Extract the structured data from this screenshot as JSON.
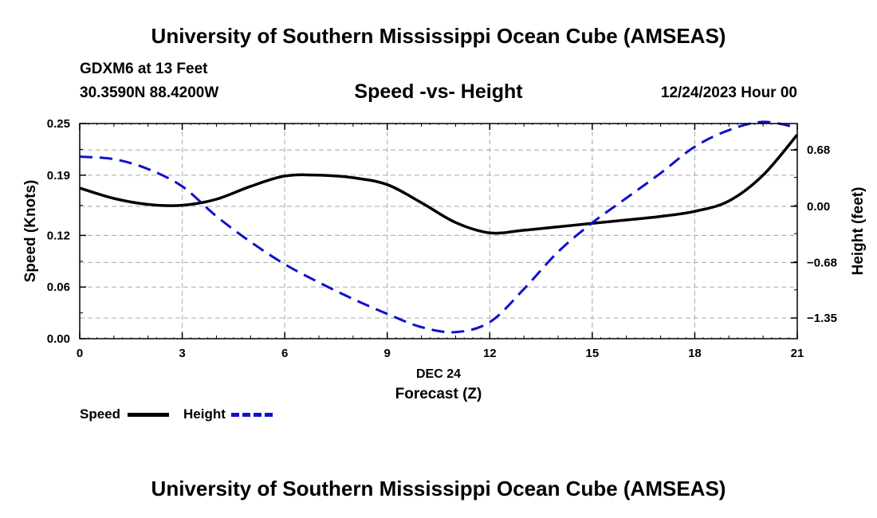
{
  "header": {
    "title": "University of Southern Mississippi Ocean Cube (AMSEAS)",
    "station": "GDXM6 at 13 Feet",
    "coords": "30.3590N  88.4200W",
    "subtitle": "Speed -vs- Height",
    "datetime": "12/24/2023 Hour 00"
  },
  "footer": {
    "title": "University of Southern Mississippi Ocean Cube (AMSEAS)"
  },
  "legend": {
    "speed_label": "Speed",
    "height_label": "Height"
  },
  "colors": {
    "speed": "#000000",
    "height": "#1010cc",
    "grid": "#b4b4b4"
  },
  "chart_data": {
    "type": "line",
    "title": "Speed -vs- Height",
    "xlabel": "Forecast (Z)",
    "xlabel_date": "DEC 24",
    "ylabel": "Speed (Knots)",
    "y2label": "Height (feet)",
    "xlim": [
      0,
      21
    ],
    "ylim": [
      0,
      0.25
    ],
    "y2lim": [
      -1.6,
      1.0
    ],
    "xticks": [
      0,
      3,
      6,
      9,
      12,
      15,
      18,
      21
    ],
    "xtick_labels": [
      "0",
      "3",
      "6",
      "9",
      "12",
      "15",
      "18",
      "21"
    ],
    "yticks": [
      0,
      0.06,
      0.12,
      0.19,
      0.25
    ],
    "ytick_labels": [
      "0.00",
      "0.06",
      "0.12",
      "0.19",
      "0.25"
    ],
    "y2ticks": [
      -1.35,
      -0.68,
      0.0,
      0.68
    ],
    "y2tick_labels": [
      "−1.35",
      "−0.68",
      "0.00",
      "0.68"
    ],
    "grid": true,
    "series": [
      {
        "name": "Speed",
        "axis": "left",
        "style": "solid",
        "x": [
          0,
          1,
          2,
          3,
          4,
          5,
          6,
          7,
          8,
          9,
          10,
          11,
          12,
          13,
          14,
          15,
          16,
          17,
          18,
          19,
          20,
          21
        ],
        "values": [
          0.175,
          0.163,
          0.156,
          0.155,
          0.162,
          0.177,
          0.189,
          0.19,
          0.187,
          0.179,
          0.158,
          0.135,
          0.123,
          0.126,
          0.13,
          0.134,
          0.138,
          0.142,
          0.148,
          0.16,
          0.19,
          0.237
        ]
      },
      {
        "name": "Height",
        "axis": "right",
        "style": "dashed",
        "x": [
          0,
          1,
          2,
          3,
          4,
          5,
          6,
          7,
          8,
          9,
          10,
          11,
          12,
          13,
          14,
          15,
          16,
          17,
          18,
          19,
          20,
          21
        ],
        "values": [
          0.6,
          0.57,
          0.45,
          0.24,
          -0.12,
          -0.43,
          -0.7,
          -0.92,
          -1.12,
          -1.3,
          -1.46,
          -1.52,
          -1.4,
          -1.0,
          -0.55,
          -0.2,
          0.1,
          0.4,
          0.72,
          0.92,
          1.02,
          0.95
        ]
      }
    ]
  }
}
